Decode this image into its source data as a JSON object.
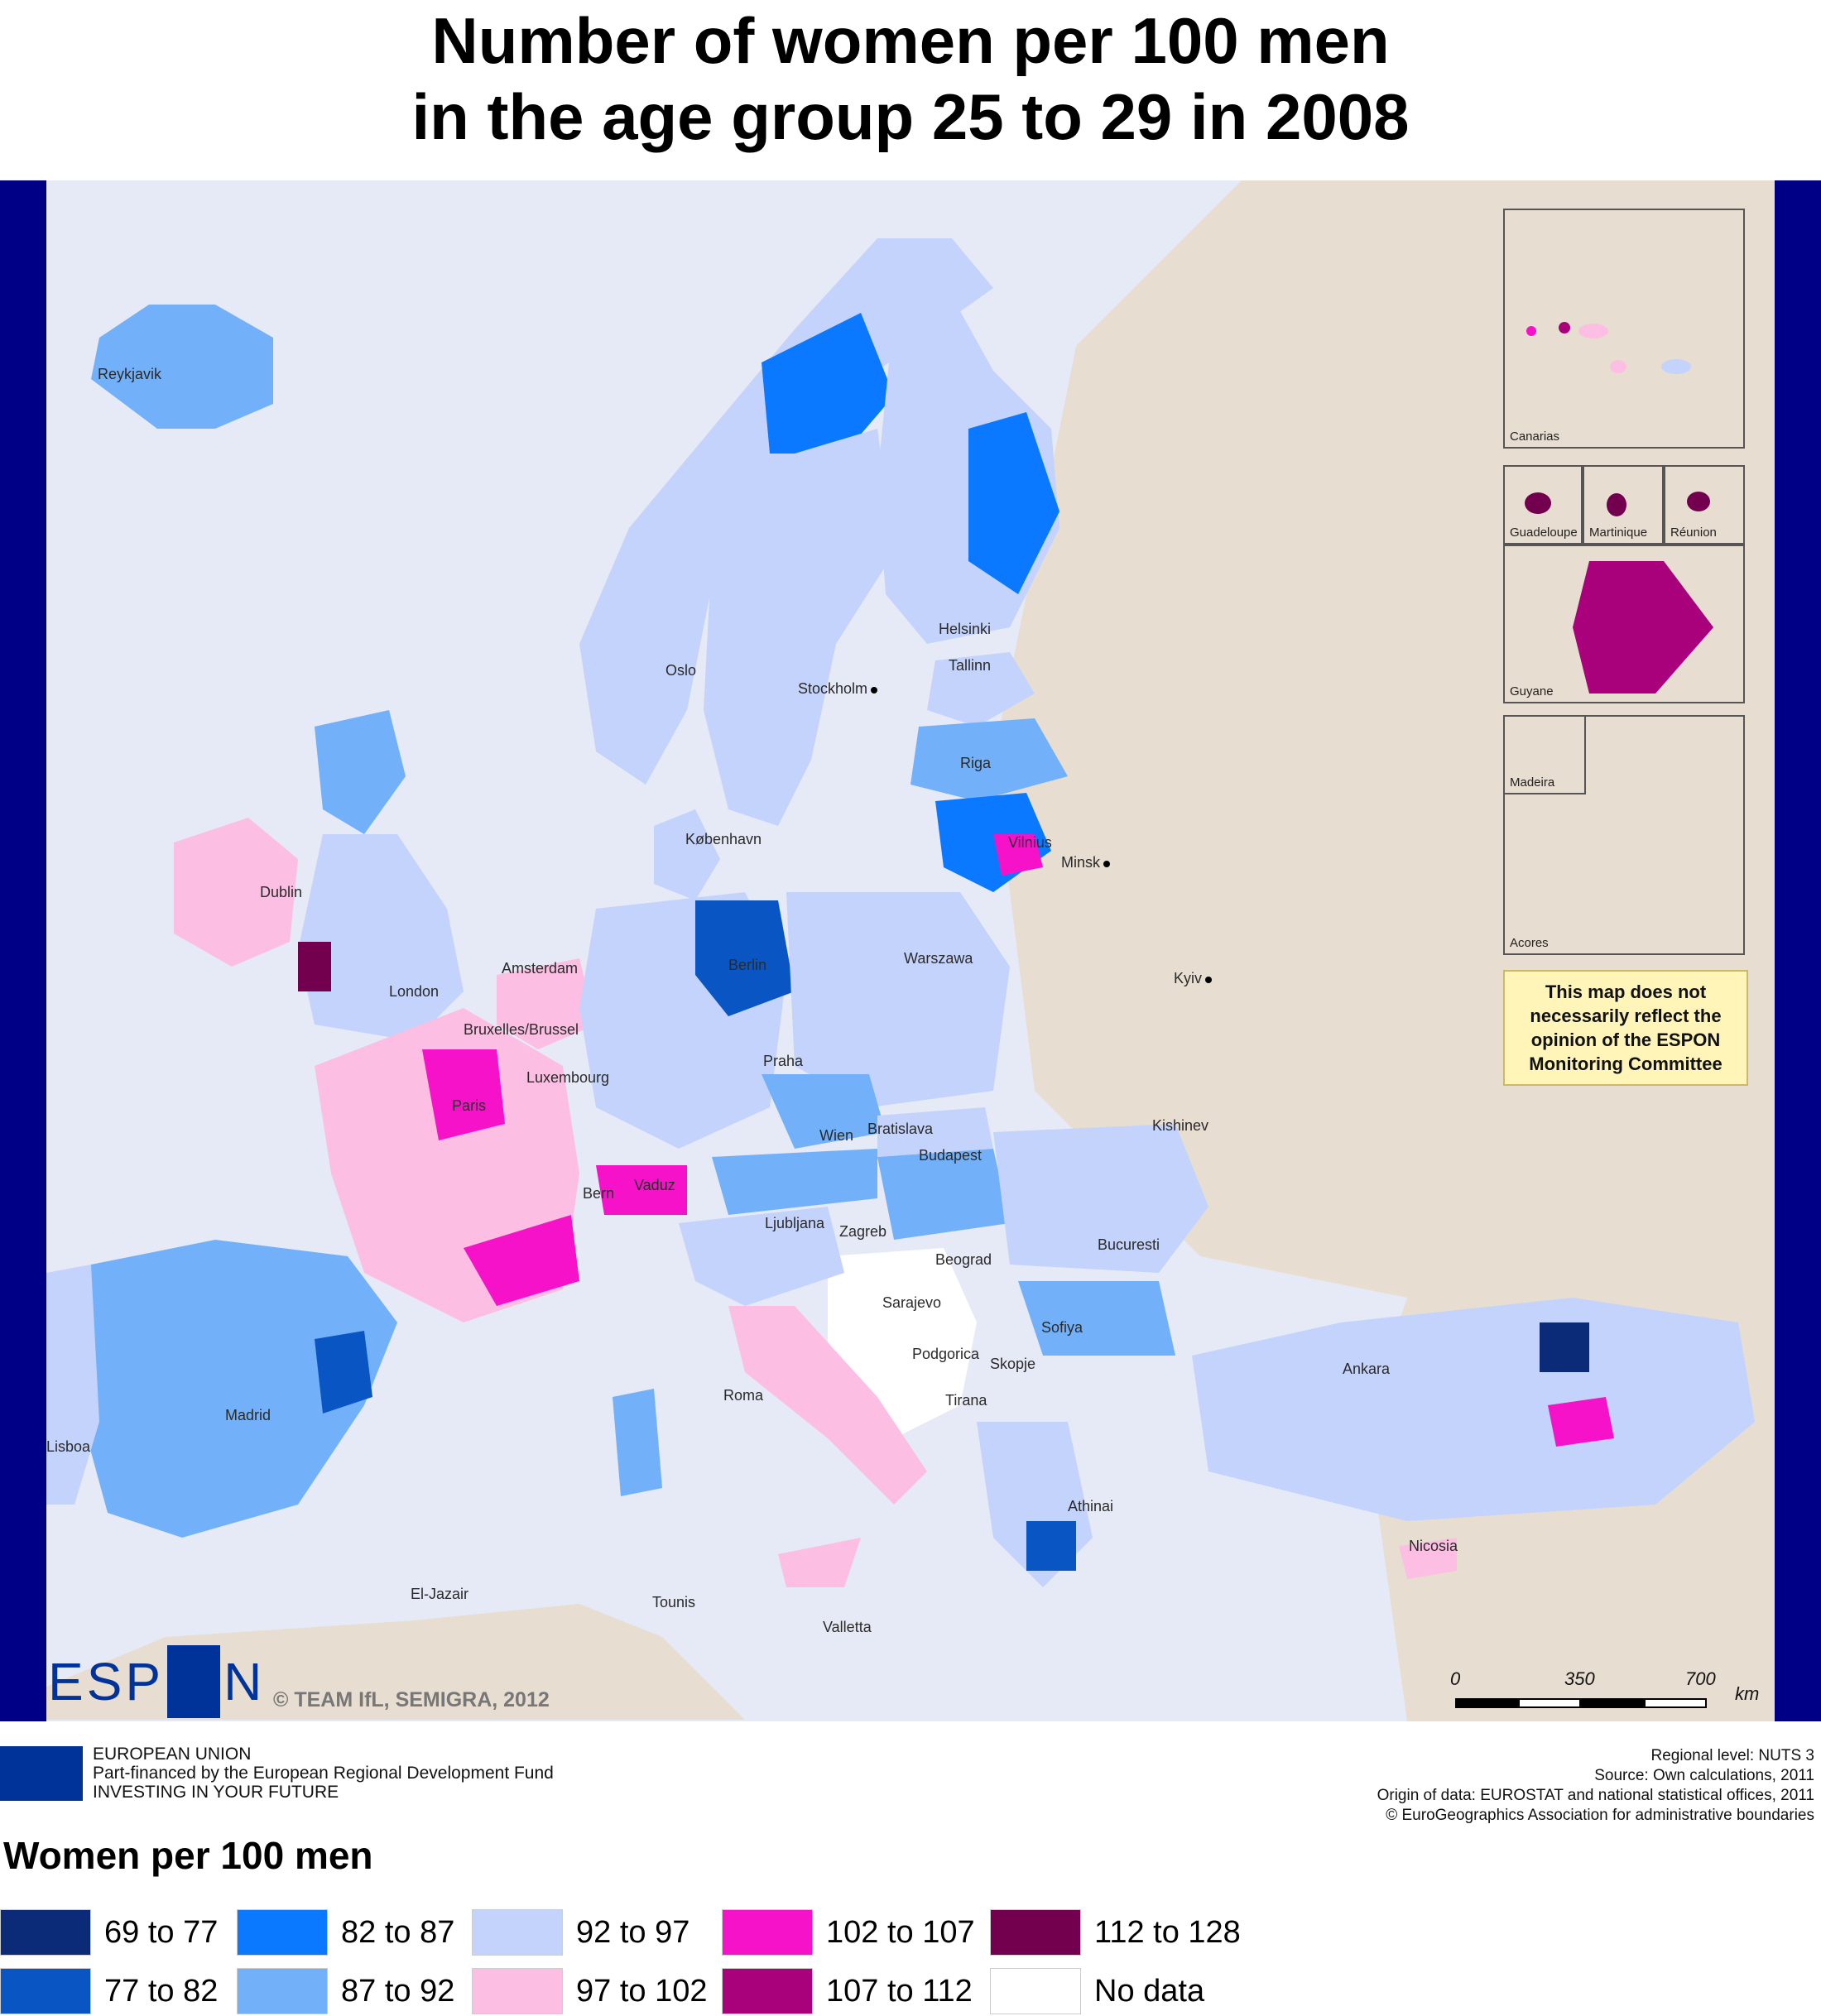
{
  "title": {
    "line1": "Number of women per 100 men",
    "line2": "in the age group 25 to 29 in 2008"
  },
  "map": {
    "background_sea": "#e6e9f6",
    "background_land": "#e8ddd1",
    "frame_bar_color": "#000087",
    "cities": [
      {
        "name": "Reykjavik"
      },
      {
        "name": "Oslo"
      },
      {
        "name": "Helsinki"
      },
      {
        "name": "Tallinn"
      },
      {
        "name": "Stockholm"
      },
      {
        "name": "Riga"
      },
      {
        "name": "København"
      },
      {
        "name": "Vilnius"
      },
      {
        "name": "Minsk"
      },
      {
        "name": "Dublin"
      },
      {
        "name": "Amsterdam"
      },
      {
        "name": "Berlin"
      },
      {
        "name": "Warszawa"
      },
      {
        "name": "London"
      },
      {
        "name": "Bruxelles/Brussel"
      },
      {
        "name": "Kyiv"
      },
      {
        "name": "Luxembourg"
      },
      {
        "name": "Praha"
      },
      {
        "name": "Paris"
      },
      {
        "name": "Kishinev"
      },
      {
        "name": "Wien"
      },
      {
        "name": "Bratislava"
      },
      {
        "name": "Budapest"
      },
      {
        "name": "Vaduz"
      },
      {
        "name": "Bern"
      },
      {
        "name": "Ljubljana"
      },
      {
        "name": "Zagreb"
      },
      {
        "name": "Beograd"
      },
      {
        "name": "Bucuresti"
      },
      {
        "name": "Sarajevo"
      },
      {
        "name": "Podgorica"
      },
      {
        "name": "Sofiya"
      },
      {
        "name": "Skopje"
      },
      {
        "name": "Tirana"
      },
      {
        "name": "Roma"
      },
      {
        "name": "Ankara"
      },
      {
        "name": "Madrid"
      },
      {
        "name": "Lisboa"
      },
      {
        "name": "Athinai"
      },
      {
        "name": "Nicosia"
      },
      {
        "name": "El-Jazair"
      },
      {
        "name": "Tounis"
      },
      {
        "name": "Valletta"
      }
    ],
    "insets": [
      {
        "label": "Canarias"
      },
      {
        "label": "Guadeloupe"
      },
      {
        "label": "Martinique"
      },
      {
        "label": "Réunion"
      },
      {
        "label": "Guyane"
      },
      {
        "label": "Madeira"
      },
      {
        "label": "Acores"
      }
    ],
    "disclaimer": [
      "This map does not",
      "necessarily reflect the",
      "opinion of the ESPON",
      "Monitoring Committee"
    ],
    "copyright": "© TEAM IfL, SEMIGRA, 2012",
    "logo_text_left": "ESP",
    "logo_text_right": "N",
    "scale": {
      "labels": [
        "0",
        "350",
        "700"
      ],
      "unit": "km"
    }
  },
  "footer": {
    "eu": [
      "EUROPEAN UNION",
      "Part-financed by the European Regional Development Fund",
      "INVESTING IN YOUR FUTURE"
    ],
    "source": [
      "Regional level: NUTS 3",
      "Source: Own calculations, 2011",
      "Origin of data: EUROSTAT and national statistical offices, 2011",
      "© EuroGeographics Association for administrative boundaries"
    ]
  },
  "legend": {
    "title": "Women per 100 men",
    "items": [
      {
        "label": "69 to 77",
        "color": "#0b2a78"
      },
      {
        "label": "77 to 82",
        "color": "#0a55c4"
      },
      {
        "label": "82 to 87",
        "color": "#0a78ff"
      },
      {
        "label": "87 to 92",
        "color": "#72b1f9"
      },
      {
        "label": "92 to 97",
        "color": "#c3d3fc"
      },
      {
        "label": "97 to 102",
        "color": "#fcbfe3"
      },
      {
        "label": "102 to 107",
        "color": "#f612c8"
      },
      {
        "label": "107 to 112",
        "color": "#a9007b"
      },
      {
        "label": "112 to 128",
        "color": "#72004e"
      },
      {
        "label": "No data",
        "color": "#ffffff"
      }
    ]
  }
}
